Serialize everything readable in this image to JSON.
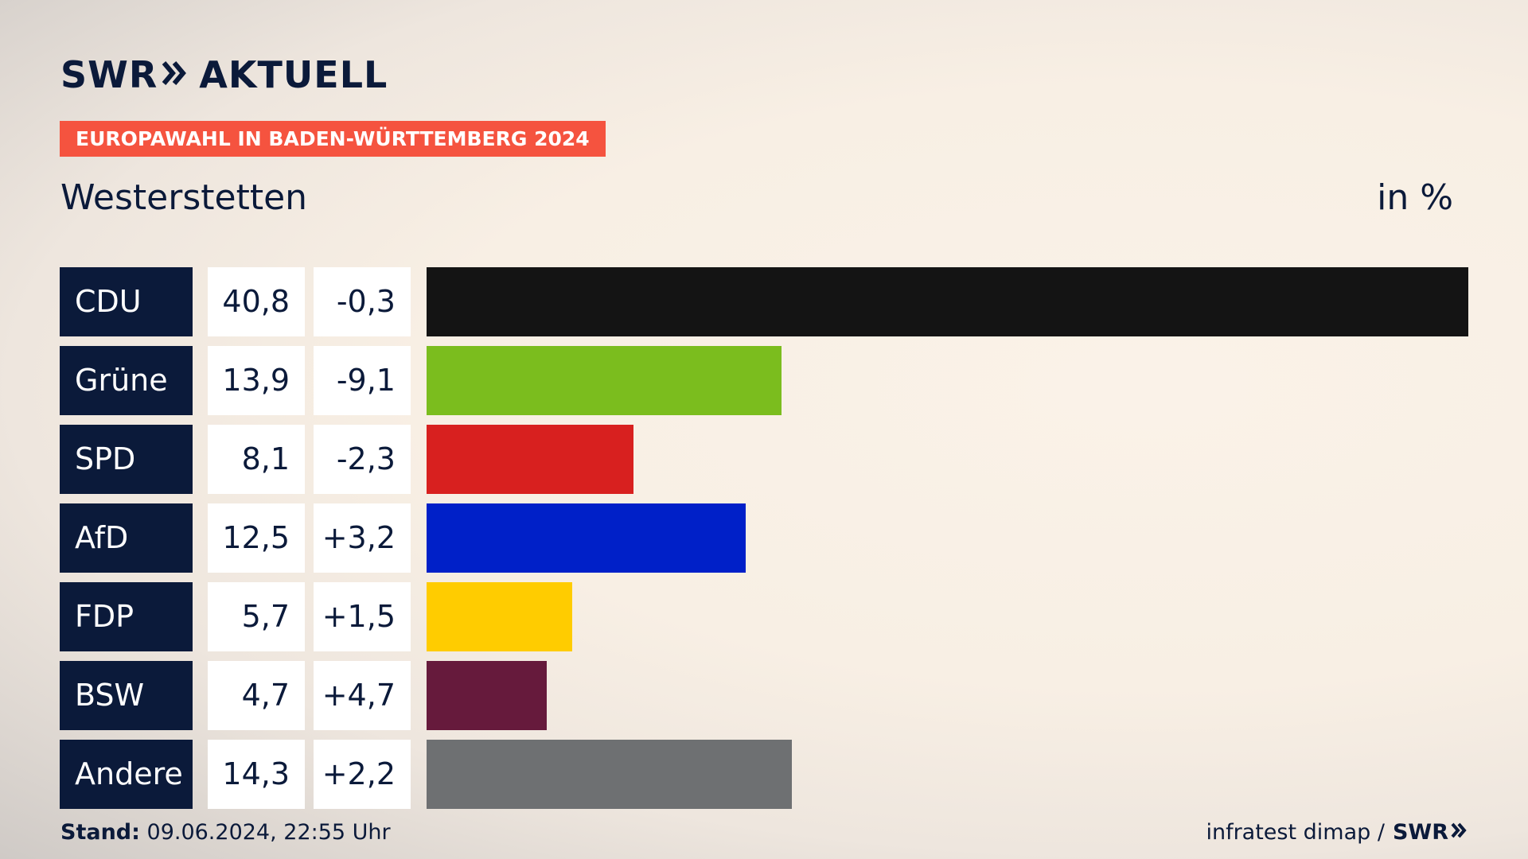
{
  "brand": {
    "logo_swr": "SWR",
    "logo_aktuell": "AKTUELL",
    "footer_logo": "SWR"
  },
  "header": {
    "event": "EUROPAWAHL IN BADEN-WÜRTTEMBERG 2024",
    "place": "Westerstetten",
    "unit": "in %"
  },
  "footer": {
    "stand_label": "Stand:",
    "stand_value": "09.06.2024, 22:55 Uhr",
    "source": "infratest dimap /"
  },
  "colors": {
    "navy": "#0b1a3a",
    "badge": "#f5533f"
  },
  "chart_data": {
    "type": "bar",
    "orientation": "horizontal",
    "categories": [
      "CDU",
      "Grüne",
      "SPD",
      "AfD",
      "FDP",
      "BSW",
      "Andere"
    ],
    "series": [
      {
        "values": [
          40.8,
          13.9,
          8.1,
          12.5,
          5.7,
          4.7,
          14.3
        ]
      }
    ],
    "value_labels": [
      "40,8",
      "13,9",
      "8,1",
      "12,5",
      "5,7",
      "4,7",
      "14,3"
    ],
    "diff_labels": [
      "-0,3",
      "-9,1",
      "-2,3",
      "+3,2",
      "+1,5",
      "+4,7",
      "+2,2"
    ],
    "diffs": [
      -0.3,
      -9.1,
      -2.3,
      3.2,
      1.5,
      4.7,
      2.2
    ],
    "bar_colors": [
      "#141414",
      "#7bbd1e",
      "#d8201f",
      "#0020c8",
      "#ffcc00",
      "#661a3c",
      "#6e7072"
    ],
    "xlim": [
      0,
      40.8
    ],
    "grid": false,
    "legend": "none"
  }
}
